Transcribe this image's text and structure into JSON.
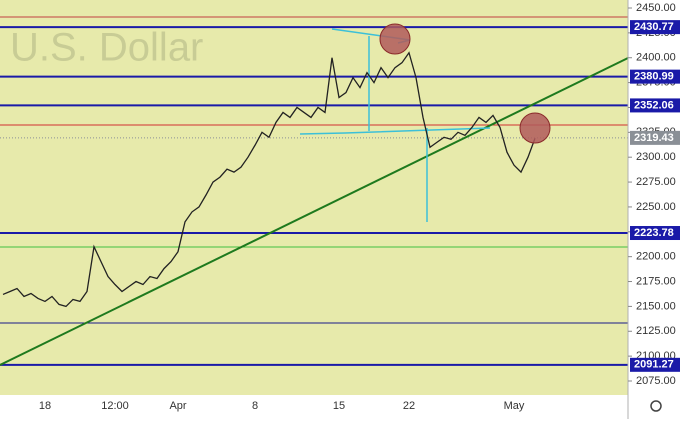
{
  "chart_data": {
    "type": "line",
    "watermark": "U.S. Dollar",
    "categories": [
      null,
      null,
      null,
      null,
      null,
      null,
      "18",
      null,
      null,
      null,
      null,
      null,
      null,
      null,
      null,
      null,
      "12:00",
      null,
      null,
      null,
      null,
      null,
      null,
      null,
      null,
      "Apr",
      null,
      null,
      null,
      null,
      null,
      null,
      null,
      null,
      null,
      null,
      "8",
      null,
      null,
      null,
      null,
      null,
      null,
      null,
      null,
      null,
      null,
      null,
      "15",
      null,
      null,
      null,
      null,
      null,
      null,
      null,
      null,
      null,
      "22",
      null,
      null,
      null,
      null,
      null,
      null,
      null,
      null,
      null,
      null,
      null,
      null,
      null,
      null,
      "May",
      null,
      null,
      null
    ],
    "values": [
      2162,
      2165,
      2168,
      2160,
      2163,
      2158,
      2155,
      2160,
      2152,
      2150,
      2157,
      2155,
      2165,
      2210,
      2195,
      2180,
      2172,
      2165,
      2170,
      2175,
      2172,
      2180,
      2178,
      2188,
      2195,
      2205,
      2235,
      2245,
      2250,
      2262,
      2275,
      2280,
      2288,
      2285,
      2290,
      2300,
      2312,
      2325,
      2320,
      2335,
      2345,
      2340,
      2350,
      2345,
      2340,
      2350,
      2345,
      2400,
      2360,
      2365,
      2380,
      2370,
      2385,
      2375,
      2390,
      2380,
      2390,
      2395,
      2405,
      2380,
      2340,
      2310,
      2315,
      2320,
      2318,
      2325,
      2322,
      2330,
      2340,
      2335,
      2342,
      2330,
      2305,
      2292,
      2285,
      2300,
      2319
    ],
    "color": "#222222",
    "ylim": [
      2075,
      2450
    ],
    "yticks": [
      {
        "value": 2075,
        "label": "2075.00"
      },
      {
        "value": 2100,
        "label": "2100.00"
      },
      {
        "value": 2125,
        "label": "2125.00"
      },
      {
        "value": 2150,
        "label": "2150.00"
      },
      {
        "value": 2175,
        "label": "2175.00"
      },
      {
        "value": 2200,
        "label": "2200.00"
      },
      {
        "value": 2225,
        "label": "2225.00"
      },
      {
        "value": 2250,
        "label": "2250.00"
      },
      {
        "value": 2275,
        "label": "2275.00"
      },
      {
        "value": 2300,
        "label": "2300.00"
      },
      {
        "value": 2325,
        "label": "2325.00"
      },
      {
        "value": 2350,
        "label": "2350.00"
      },
      {
        "value": 2375,
        "label": "2375.00"
      },
      {
        "value": 2400,
        "label": "2400.00"
      },
      {
        "value": 2425,
        "label": "2425.00"
      },
      {
        "value": 2450,
        "label": "2450.00"
      }
    ],
    "levels": [
      {
        "value": 2430.77,
        "label": "2430.77"
      },
      {
        "value": 2380.99,
        "label": "2380.99"
      },
      {
        "value": 2352.06,
        "label": "2352.06"
      },
      {
        "value": 2223.78,
        "label": "2223.78"
      },
      {
        "value": 2091.27,
        "label": "2091.27"
      }
    ],
    "level_color": "#1a1aa8",
    "last_price": {
      "value": 2319.43,
      "label": "2319.43"
    },
    "last_color": "#8a8f96"
  }
}
